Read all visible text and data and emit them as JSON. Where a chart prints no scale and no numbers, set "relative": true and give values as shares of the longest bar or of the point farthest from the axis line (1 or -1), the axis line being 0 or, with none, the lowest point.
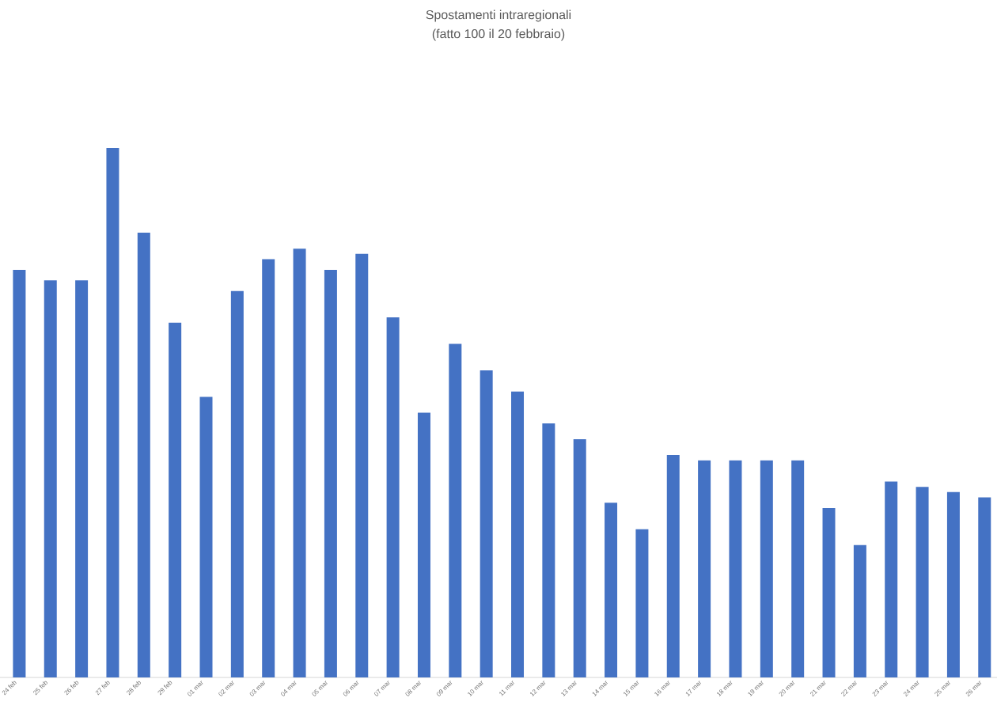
{
  "chart_data": {
    "type": "bar",
    "title": "Spostamenti intraregionali",
    "subtitle": "(fatto 100 il 20 febbraio)",
    "categories": [
      "24 feb",
      "25 feb",
      "26 feb",
      "27 feb",
      "28 feb",
      "29 feb",
      "01 mar",
      "02 mar",
      "03 mar",
      "04 mar",
      "05 mar",
      "06 mar",
      "07 mar",
      "08 mar",
      "09 mar",
      "10 mar",
      "11 mar",
      "12 mar",
      "13 mar",
      "14 mar",
      "15 mar",
      "16 mar",
      "17 mar",
      "18 mar",
      "19 mar",
      "20 mar",
      "21 mar",
      "22 mar",
      "23 mar",
      "24 mar",
      "25 mar",
      "26 mar"
    ],
    "values": [
      0.77,
      0.75,
      0.75,
      1,
      0.84,
      0.67,
      0.53,
      0.73,
      0.79,
      0.81,
      0.77,
      0.8,
      0.68,
      0.5,
      0.63,
      0.58,
      0.54,
      0.48,
      0.45,
      0.33,
      0.28,
      0.42,
      0.41,
      0.41,
      0.41,
      0.41,
      0.32,
      0.25,
      0.37,
      0.36,
      0.35,
      0.34
    ],
    "color": "#4472c4",
    "relative": true
  }
}
